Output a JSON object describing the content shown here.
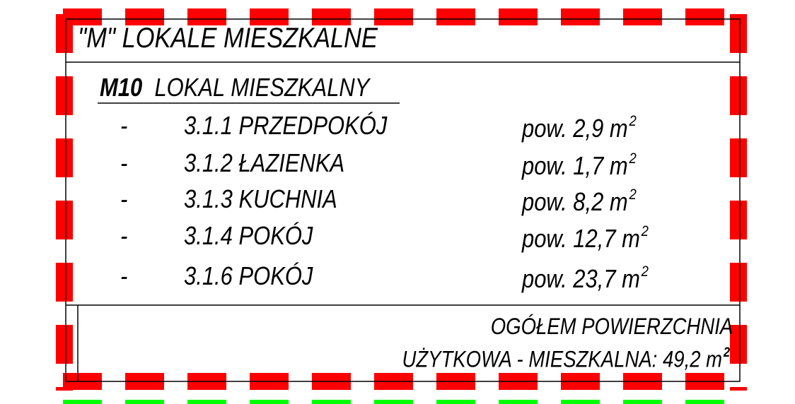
{
  "colors": {
    "red_border": "#ff0000",
    "green_border": "#00ff00",
    "lines": "#000000"
  },
  "title": "\"M\" LOKALE MIESZKALNE",
  "unit": {
    "code": "M10",
    "label": "LOKAL MIESZKALNY"
  },
  "rooms": [
    {
      "bullet": "-",
      "name": "3.1.1 PRZEDPOKÓJ",
      "area": "pow. 2,9 m",
      "exp": "2"
    },
    {
      "bullet": "-",
      "name": "3.1.2 ŁAZIENKA",
      "area": "pow. 1,7 m",
      "exp": "2"
    },
    {
      "bullet": "-",
      "name": "3.1.3 KUCHNIA",
      "area": "pow. 8,2 m",
      "exp": "2"
    },
    {
      "bullet": "-",
      "name": "3.1.4 POKÓJ",
      "area": "pow. 12,7 m",
      "exp": "2"
    },
    {
      "bullet": "-",
      "name": "3.1.6 POKÓJ",
      "area": "pow. 23,7 m",
      "exp": "2"
    }
  ],
  "total": {
    "line1": "OGÓŁEM POWIERZCHNIA",
    "line2": "UŻYTKOWA - MIESZKALNA: 49,2 m",
    "exp": "2"
  }
}
